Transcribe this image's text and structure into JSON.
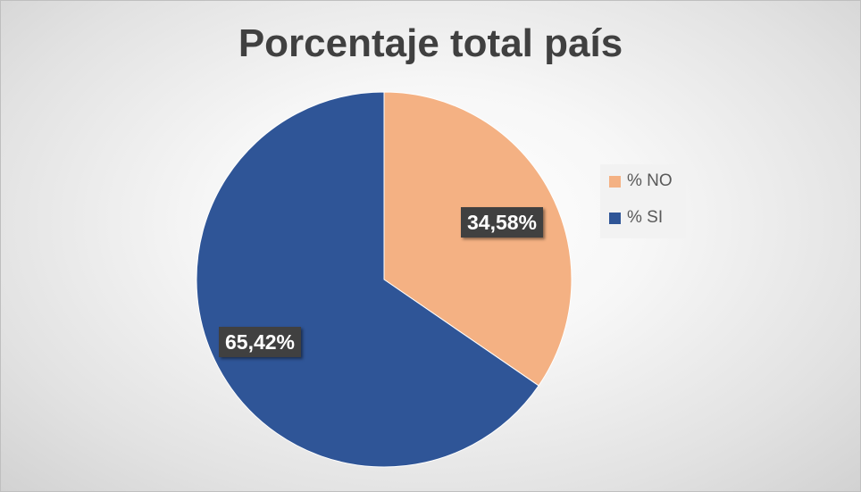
{
  "chart_data": {
    "type": "pie",
    "title": "Porcentaje total país",
    "legend_position": "right",
    "slices": [
      {
        "name": "% NO",
        "value": 34.58,
        "label": "34,58%",
        "color": "#F4B183"
      },
      {
        "name": "% SI",
        "value": 65.42,
        "label": "65,42%",
        "color": "#2F5597"
      }
    ]
  }
}
